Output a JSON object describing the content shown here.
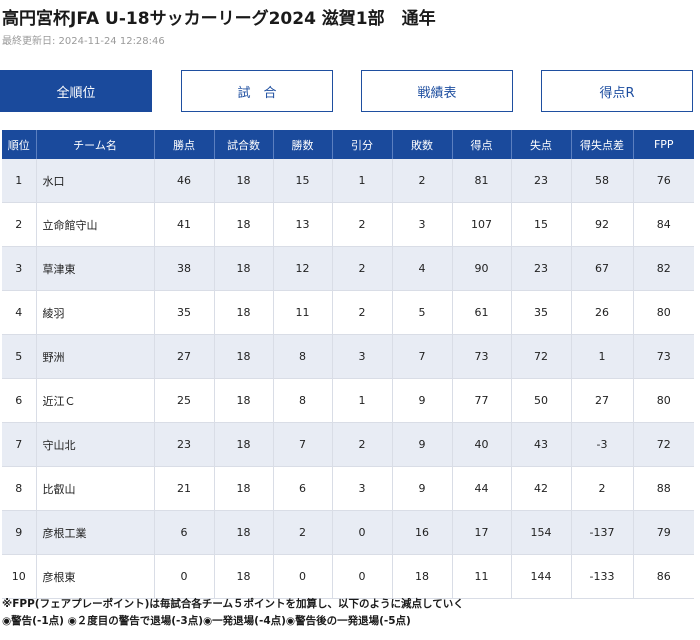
{
  "page": {
    "title": "高円宮杯JFA U-18サッカーリーグ2024 滋賀1部　通年",
    "last_updated": "最終更新日: 2024-11-24 12:28:46"
  },
  "tabs": [
    {
      "label": "全順位",
      "active": true
    },
    {
      "label": "試　合",
      "active": false
    },
    {
      "label": "戦績表",
      "active": false
    },
    {
      "label": "得点R",
      "active": false
    }
  ],
  "table": {
    "headers": [
      "順位",
      "チーム名",
      "勝点",
      "試合数",
      "勝数",
      "引分",
      "敗数",
      "得点",
      "失点",
      "得失点差",
      "FPP"
    ],
    "rows": [
      [
        "1",
        "水口",
        "46",
        "18",
        "15",
        "1",
        "2",
        "81",
        "23",
        "58",
        "76"
      ],
      [
        "2",
        "立命館守山",
        "41",
        "18",
        "13",
        "2",
        "3",
        "107",
        "15",
        "92",
        "84"
      ],
      [
        "3",
        "草津東",
        "38",
        "18",
        "12",
        "2",
        "4",
        "90",
        "23",
        "67",
        "82"
      ],
      [
        "4",
        "綾羽",
        "35",
        "18",
        "11",
        "2",
        "5",
        "61",
        "35",
        "26",
        "80"
      ],
      [
        "5",
        "野洲",
        "27",
        "18",
        "8",
        "3",
        "7",
        "73",
        "72",
        "1",
        "73"
      ],
      [
        "6",
        "近江Ｃ",
        "25",
        "18",
        "8",
        "1",
        "9",
        "77",
        "50",
        "27",
        "80"
      ],
      [
        "7",
        "守山北",
        "23",
        "18",
        "7",
        "2",
        "9",
        "40",
        "43",
        "-3",
        "72"
      ],
      [
        "8",
        "比叡山",
        "21",
        "18",
        "6",
        "3",
        "9",
        "44",
        "42",
        "2",
        "88"
      ],
      [
        "9",
        "彦根工業",
        "6",
        "18",
        "2",
        "0",
        "16",
        "17",
        "154",
        "-137",
        "79"
      ],
      [
        "10",
        "彦根東",
        "0",
        "18",
        "0",
        "0",
        "18",
        "11",
        "144",
        "-133",
        "86"
      ]
    ]
  },
  "notes": [
    "※FPP(フェアプレーポイント)は毎試合各チーム５ポイントを加算し、以下のように減点していく",
    "◉警告(-1点) ◉２度目の警告で退場(-3点)◉一発退場(-4点)◉警告後の一発退場(-5点)"
  ]
}
